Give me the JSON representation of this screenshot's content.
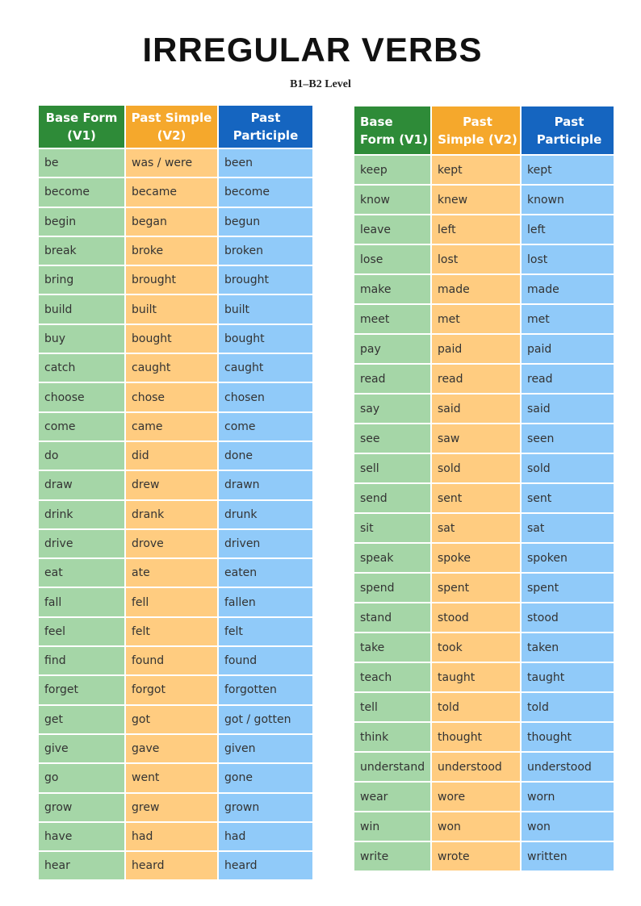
{
  "header": {
    "title": "IRREGULAR VERBS",
    "subtitle": "B1–B2 Level"
  },
  "tables": [
    {
      "headers": [
        "Base Form (V1)",
        "Past Simple (V2)",
        "Past Participle"
      ],
      "rows": [
        [
          "be",
          "was / were",
          "been"
        ],
        [
          "become",
          "became",
          "become"
        ],
        [
          "begin",
          "began",
          "begun"
        ],
        [
          "break",
          "broke",
          "broken"
        ],
        [
          "bring",
          "brought",
          "brought"
        ],
        [
          "build",
          "built",
          "built"
        ],
        [
          "buy",
          "bought",
          "bought"
        ],
        [
          "catch",
          "caught",
          "caught"
        ],
        [
          "choose",
          "chose",
          "chosen"
        ],
        [
          "come",
          "came",
          "come"
        ],
        [
          "do",
          "did",
          "done"
        ],
        [
          "draw",
          "drew",
          "drawn"
        ],
        [
          "drink",
          "drank",
          "drunk"
        ],
        [
          "drive",
          "drove",
          "driven"
        ],
        [
          "eat",
          "ate",
          "eaten"
        ],
        [
          "fall",
          "fell",
          "fallen"
        ],
        [
          "feel",
          "felt",
          "felt"
        ],
        [
          "find",
          "found",
          "found"
        ],
        [
          "forget",
          "forgot",
          "forgotten"
        ],
        [
          "get",
          "got",
          "got / gotten"
        ],
        [
          "give",
          "gave",
          "given"
        ],
        [
          "go",
          "went",
          "gone"
        ],
        [
          "grow",
          "grew",
          "grown"
        ],
        [
          "have",
          "had",
          "had"
        ],
        [
          "hear",
          "heard",
          "heard"
        ]
      ]
    },
    {
      "headers": [
        "Base Form (V1)",
        "Past Simple (V2)",
        "Past Participle"
      ],
      "rows": [
        [
          "keep",
          "kept",
          "kept"
        ],
        [
          "know",
          "knew",
          "known"
        ],
        [
          "leave",
          "left",
          "left"
        ],
        [
          "lose",
          "lost",
          "lost"
        ],
        [
          "make",
          "made",
          "made"
        ],
        [
          "meet",
          "met",
          "met"
        ],
        [
          "pay",
          "paid",
          "paid"
        ],
        [
          "read",
          "read",
          "read"
        ],
        [
          "say",
          "said",
          "said"
        ],
        [
          "see",
          "saw",
          "seen"
        ],
        [
          "sell",
          "sold",
          "sold"
        ],
        [
          "send",
          "sent",
          "sent"
        ],
        [
          "sit",
          "sat",
          "sat"
        ],
        [
          "speak",
          "spoke",
          "spoken"
        ],
        [
          "spend",
          "spent",
          "spent"
        ],
        [
          "stand",
          "stood",
          "stood"
        ],
        [
          "take",
          "took",
          "taken"
        ],
        [
          "teach",
          "taught",
          "taught"
        ],
        [
          "tell",
          "told",
          "told"
        ],
        [
          "think",
          "thought",
          "thought"
        ],
        [
          "understand",
          "understood",
          "understood"
        ],
        [
          "wear",
          "wore",
          "worn"
        ],
        [
          "win",
          "won",
          "won"
        ],
        [
          "write",
          "wrote",
          "written"
        ]
      ]
    }
  ]
}
